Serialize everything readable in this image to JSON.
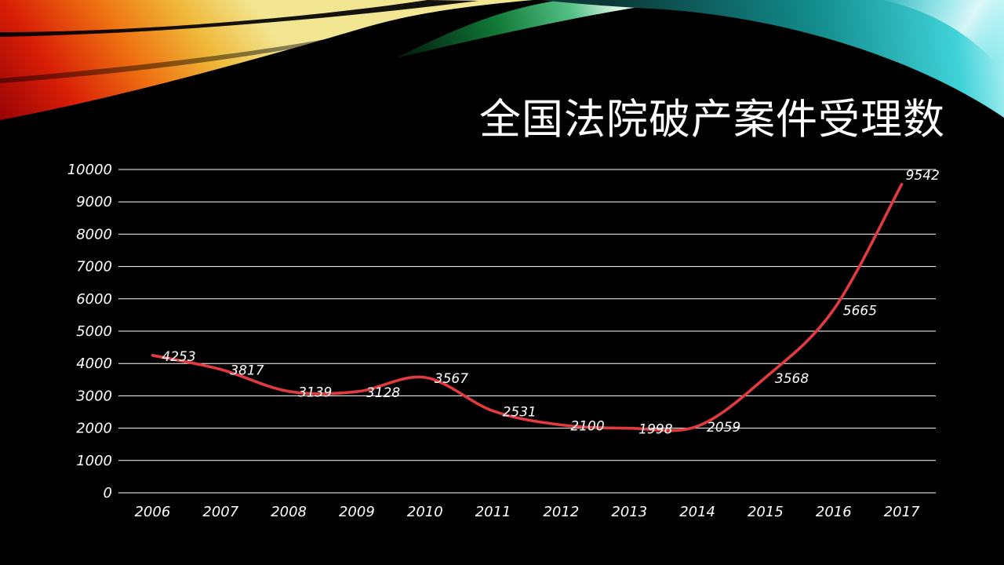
{
  "slide": {
    "title": "全国法院破产案件受理数",
    "background_color": "#000000",
    "title_color": "#ffffff"
  },
  "chart_data": {
    "type": "line",
    "title": "全国法院破产案件受理数",
    "categories": [
      "2006",
      "2007",
      "2008",
      "2009",
      "2010",
      "2011",
      "2012",
      "2013",
      "2014",
      "2015",
      "2016",
      "2017"
    ],
    "series": [
      {
        "values": [
          4253,
          3817,
          3139,
          3128,
          3567,
          2531,
          2100,
          1998,
          2059,
          3568,
          5665,
          9542
        ],
        "color": "#e13b40"
      }
    ],
    "data_labels": [
      "4253",
      "3817",
      "3139",
      "3128",
      "3567",
      "2531",
      "2100",
      "1998",
      "2059",
      "3568",
      "5665",
      "9542"
    ],
    "xlabel": "",
    "ylabel": "",
    "ylim": [
      0,
      10000
    ],
    "ytick_step": 1000,
    "grid": true,
    "legend": "none",
    "colors": {
      "background": "#000000",
      "gridline": "#ffffff",
      "axis_text": "#ffffff",
      "line": "#e13b40",
      "data_label_text": "#ffffff"
    }
  }
}
